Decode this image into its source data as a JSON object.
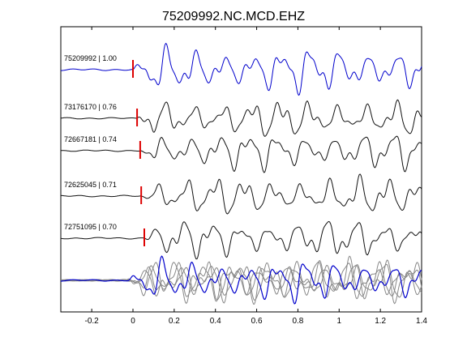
{
  "chart_data": {
    "type": "line",
    "title": "75209992.NC.MCD.EHZ",
    "xlabel": "",
    "ylabel": "",
    "xlim": [
      -0.35,
      1.4
    ],
    "xticks": [
      -0.2,
      0,
      0.2,
      0.4,
      0.6,
      0.8,
      1,
      1.2,
      1.4
    ],
    "xtick_labels": [
      "-0.2",
      "0",
      "0.2",
      "0.4",
      "0.6",
      "0.8",
      "1",
      "1.2",
      "1.4"
    ],
    "grid": false,
    "colors": {
      "reference": "#0000cc",
      "trace": "#111111",
      "stack": "#888888",
      "pick": "#dd0000"
    },
    "traces": [
      {
        "label": "75209992 | 1.00",
        "pick_time": 0.0,
        "color": "reference"
      },
      {
        "label": "73176170 | 0.76",
        "pick_time": 0.02,
        "color": "trace"
      },
      {
        "label": "72667181 | 0.74",
        "pick_time": 0.035,
        "color": "trace"
      },
      {
        "label": "72625045 | 0.71",
        "pick_time": 0.04,
        "color": "trace"
      },
      {
        "label": "72751095 | 0.70",
        "pick_time": 0.055,
        "color": "trace"
      }
    ],
    "stack_panel": {
      "description_visible": false
    }
  }
}
